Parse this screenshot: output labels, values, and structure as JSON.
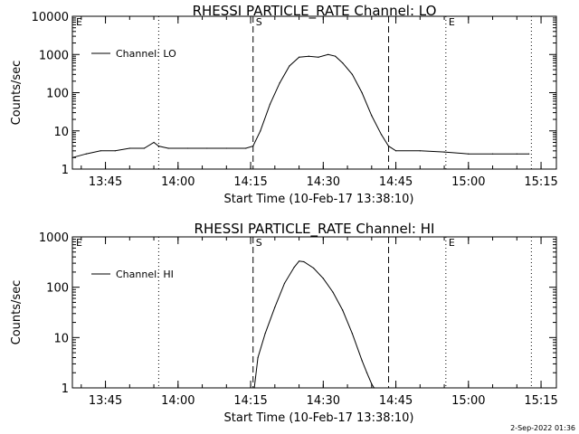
{
  "chart_data": [
    {
      "type": "line",
      "title": "RHESSI PARTICLE_RATE Channel: LO",
      "xlabel": "Start Time (10-Feb-17 13:38:10)",
      "ylabel": "Counts/sec",
      "yscale": "log",
      "ylim": [
        1,
        10000
      ],
      "xlim": [
        "13:38:10",
        "15:18:10"
      ],
      "x_ticks": [
        "13:45",
        "14:00",
        "14:15",
        "14:30",
        "14:45",
        "15:00",
        "15:15"
      ],
      "y_ticks": [
        "1",
        "10",
        "100",
        "1000",
        "10000"
      ],
      "legend": {
        "label": "Channel: LO",
        "placement": "top-left"
      },
      "markers": [
        {
          "label": "E",
          "time": "13:38:10",
          "style": "none"
        },
        {
          "label": "",
          "time": "13:56:00",
          "style": "dotted"
        },
        {
          "label": "S",
          "time": "14:15:30",
          "style": "dashed"
        },
        {
          "label": "",
          "time": "14:43:30",
          "style": "dashed"
        },
        {
          "label": "E",
          "time": "14:55:20",
          "style": "dotted"
        },
        {
          "label": "",
          "time": "15:13:00",
          "style": "dotted"
        }
      ],
      "series": [
        {
          "name": "Channel: LO",
          "x": [
            "13:38:10",
            "13:41:00",
            "13:44:00",
            "13:47:00",
            "13:50:00",
            "13:53:00",
            "13:55:00",
            "13:56:00",
            "13:58:00",
            "14:02:00",
            "14:06:00",
            "14:10:00",
            "14:14:00",
            "14:15:30",
            "14:17:00",
            "14:19:00",
            "14:21:00",
            "14:23:00",
            "14:25:00",
            "14:27:00",
            "14:29:00",
            "14:31:00",
            "14:32:30",
            "14:34:00",
            "14:36:00",
            "14:38:00",
            "14:40:00",
            "14:42:00",
            "14:43:30",
            "14:45:00",
            "14:50:00",
            "14:55:00",
            "15:00:00",
            "15:05:00",
            "15:10:00",
            "15:12:30"
          ],
          "values": [
            2,
            2.5,
            3,
            3,
            3.5,
            3.5,
            5,
            4,
            3.5,
            3.5,
            3.5,
            3.5,
            3.5,
            4,
            10,
            50,
            180,
            500,
            850,
            900,
            850,
            1000,
            900,
            600,
            300,
            100,
            25,
            8,
            4,
            3,
            3,
            2.8,
            2.5,
            2.5,
            2.5,
            2.5
          ]
        }
      ]
    },
    {
      "type": "line",
      "title": "RHESSI PARTICLE_RATE Channel: HI",
      "xlabel": "Start Time (10-Feb-17 13:38:10)",
      "ylabel": "Counts/sec",
      "yscale": "log",
      "ylim": [
        1,
        1000
      ],
      "xlim": [
        "13:38:10",
        "15:18:10"
      ],
      "x_ticks": [
        "13:45",
        "14:00",
        "14:15",
        "14:30",
        "14:45",
        "15:00",
        "15:15"
      ],
      "y_ticks": [
        "1",
        "10",
        "100",
        "1000"
      ],
      "legend": {
        "label": "Channel: HI",
        "placement": "top-left"
      },
      "markers": [
        {
          "label": "E",
          "time": "13:38:10",
          "style": "none"
        },
        {
          "label": "",
          "time": "13:56:00",
          "style": "dotted"
        },
        {
          "label": "S",
          "time": "14:15:30",
          "style": "dashed"
        },
        {
          "label": "",
          "time": "14:43:30",
          "style": "dashed"
        },
        {
          "label": "E",
          "time": "14:55:20",
          "style": "dotted"
        },
        {
          "label": "",
          "time": "15:13:00",
          "style": "dotted"
        }
      ],
      "series": [
        {
          "name": "Channel: HI",
          "x": [
            "14:15:45",
            "14:16:30",
            "14:18:00",
            "14:20:00",
            "14:22:00",
            "14:24:00",
            "14:25:00",
            "14:26:00",
            "14:28:00",
            "14:30:00",
            "14:32:00",
            "14:34:00",
            "14:36:00",
            "14:38:00",
            "14:39:00",
            "14:40:00",
            "14:40:30"
          ],
          "values": [
            1,
            4,
            12,
            40,
            120,
            250,
            330,
            320,
            240,
            150,
            80,
            35,
            12,
            3.5,
            2,
            1.2,
            1
          ]
        }
      ]
    }
  ],
  "footer": {
    "timestamp": "2-Sep-2022 01:36"
  }
}
